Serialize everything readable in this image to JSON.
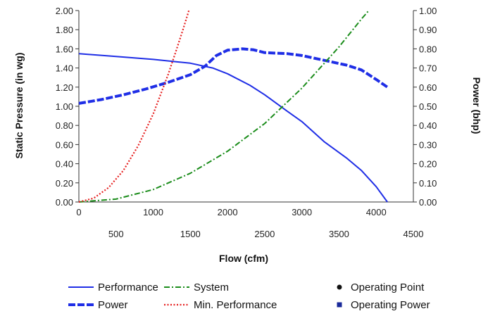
{
  "chart_data": {
    "type": "line",
    "title": "",
    "xlabel": "Flow (cfm)",
    "ylabel_left": "Static Pressure (in wg)",
    "ylabel_right": "Power (bhp)",
    "xlim": [
      0,
      4500
    ],
    "ylim_left": [
      0,
      2.0
    ],
    "ylim_right": [
      0,
      1.0
    ],
    "x_ticks_top_row": [
      "0",
      "1000",
      "2000",
      "3000",
      "4000"
    ],
    "x_ticks_bottom_row": [
      "500",
      "1500",
      "2500",
      "3500",
      "4500"
    ],
    "y_ticks_left": [
      "0.00",
      "0.20",
      "0.40",
      "0.60",
      "0.80",
      "1.00",
      "1.20",
      "1.40",
      "1.60",
      "1.80",
      "2.00"
    ],
    "y_ticks_right": [
      "0.00",
      "0.10",
      "0.20",
      "0.30",
      "0.40",
      "0.50",
      "0.60",
      "0.70",
      "0.80",
      "0.90",
      "1.00"
    ],
    "grid": false,
    "legend_position": "bottom",
    "series": [
      {
        "name": "Performance",
        "axis": "left",
        "style": "solid",
        "color": "#1f2ee6",
        "x": [
          0,
          500,
          1000,
          1500,
          1800,
          2000,
          2300,
          2500,
          2800,
          3000,
          3300,
          3600,
          3800,
          4000,
          4150
        ],
        "y": [
          1.55,
          1.52,
          1.49,
          1.45,
          1.4,
          1.34,
          1.22,
          1.12,
          0.95,
          0.84,
          0.63,
          0.46,
          0.33,
          0.16,
          0.0
        ]
      },
      {
        "name": "Power",
        "axis": "right",
        "style": "dashed-thick",
        "color": "#1f2ee6",
        "x": [
          0,
          300,
          600,
          900,
          1200,
          1500,
          1700,
          1850,
          2000,
          2200,
          2350,
          2500,
          2800,
          3000,
          3300,
          3600,
          3800,
          4000,
          4150
        ],
        "y": [
          0.515,
          0.535,
          0.56,
          0.59,
          0.625,
          0.665,
          0.71,
          0.765,
          0.793,
          0.8,
          0.795,
          0.78,
          0.775,
          0.765,
          0.74,
          0.715,
          0.69,
          0.64,
          0.6
        ]
      },
      {
        "name": "System",
        "axis": "left",
        "style": "dashdot",
        "color": "#1a8c1a",
        "x": [
          0,
          500,
          1000,
          1500,
          2000,
          2500,
          3000,
          3500,
          3800,
          3900
        ],
        "y": [
          0.0,
          0.03,
          0.13,
          0.3,
          0.53,
          0.82,
          1.19,
          1.62,
          1.91,
          2.0
        ]
      },
      {
        "name": "Min. Performance",
        "axis": "left",
        "style": "dotted",
        "color": "#e62020",
        "x": [
          0,
          200,
          400,
          600,
          800,
          1000,
          1200,
          1300,
          1400,
          1480
        ],
        "y": [
          0.0,
          0.04,
          0.15,
          0.33,
          0.59,
          0.92,
          1.33,
          1.56,
          1.8,
          2.0
        ]
      }
    ],
    "legend": [
      {
        "label": "Performance",
        "style": "solid",
        "color": "#1f2ee6"
      },
      {
        "label": "Power",
        "style": "dashed-thick",
        "color": "#1f2ee6"
      },
      {
        "label": "System",
        "style": "dashdot",
        "color": "#1a8c1a"
      },
      {
        "label": "Min. Performance",
        "style": "dotted",
        "color": "#e62020"
      },
      {
        "label": "Operating Point",
        "style": "circle-marker",
        "color": "#111111"
      },
      {
        "label": "Operating Power",
        "style": "square-marker",
        "color": "#1a2a9a"
      }
    ]
  }
}
